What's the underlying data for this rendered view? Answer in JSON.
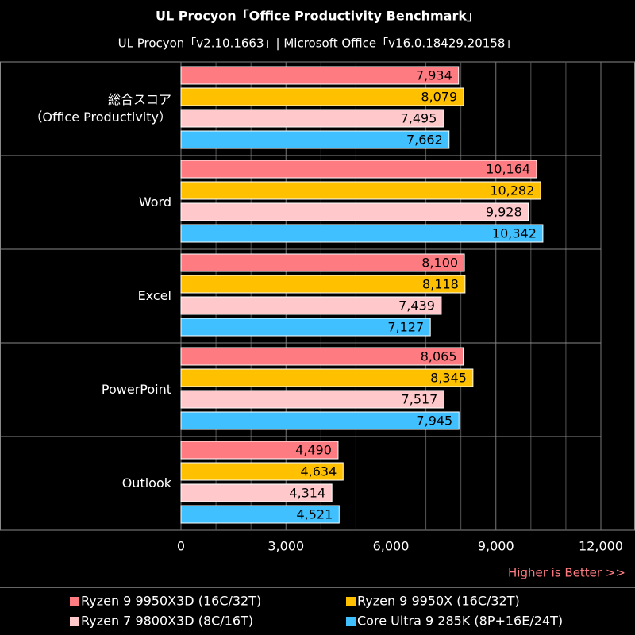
{
  "chart_data": {
    "type": "grouped-hbar",
    "title": "UL Procyon「Office Productivity Benchmark」",
    "subtitle": "UL Procyon「v2.10.1663」| Microsoft Office「v16.0.18429.20158」",
    "categories": [
      "総合スコア\n（Office Productivity）",
      "Word",
      "Excel",
      "PowerPoint",
      "Outlook"
    ],
    "series": [
      {
        "name": "Ryzen 9 9950X3D (16C/32T)",
        "color": "#ff7b82",
        "values": [
          7934,
          10164,
          8100,
          8065,
          4490
        ],
        "value_labels": [
          "7,934",
          "10,164",
          "8,100",
          "8,065",
          "4,490"
        ]
      },
      {
        "name": "Ryzen 9 9950X (16C/32T)",
        "color": "#ffc000",
        "values": [
          8079,
          10282,
          8118,
          8345,
          4634
        ],
        "value_labels": [
          "8,079",
          "10,282",
          "8,118",
          "8,345",
          "4,634"
        ]
      },
      {
        "name": "Ryzen 7 9800X3D (8C/16T)",
        "color": "#ffc9cc",
        "values": [
          7495,
          9928,
          7439,
          7517,
          4314
        ],
        "value_labels": [
          "7,495",
          "9,928",
          "7,439",
          "7,517",
          "4,314"
        ]
      },
      {
        "name": "Core Ultra 9 285K (8P+16E/24T)",
        "color": "#40c0ff",
        "values": [
          7662,
          10342,
          7127,
          7945,
          4521
        ],
        "value_labels": [
          "7,662",
          "10,342",
          "7,127",
          "7,945",
          "4,521"
        ]
      }
    ],
    "xlim": [
      0,
      12000
    ],
    "xticks": [
      0,
      {
        "value": 3000,
        "label": "3,000"
      },
      {
        "value": 6000,
        "label": "6,000"
      },
      {
        "value": 9000,
        "label": "9,000"
      },
      {
        "value": 12000,
        "label": "12,000"
      }
    ],
    "minor_xticks": [
      1000,
      2000,
      4000,
      5000,
      7000,
      8000,
      10000,
      11000
    ],
    "grid": true,
    "annotation": "Higher is Better >>"
  }
}
